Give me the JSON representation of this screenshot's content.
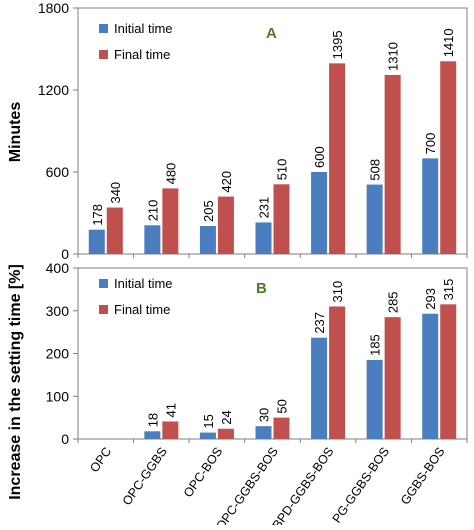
{
  "figure": {
    "y_axis_title_top": "Minutes",
    "y_axis_title_bottom": "Increase in the setting time [%]"
  },
  "colors": {
    "initial": "#4a7ebf",
    "final": "#c0504d",
    "panel_letter": "#4f7a28"
  },
  "chart_data": [
    {
      "type": "bar",
      "panel_label": "A",
      "categories": [
        "OPC",
        "OPC-GGBS",
        "OPC-BOS",
        "OPC-GGBS-BOS",
        "BPD-GGBS-BOS",
        "PG-GGBS-BOS",
        "GGBS-BOS"
      ],
      "series": [
        {
          "name": "Initial time",
          "values": [
            178,
            210,
            205,
            231,
            600,
            508,
            700
          ]
        },
        {
          "name": "Final time",
          "values": [
            340,
            480,
            420,
            510,
            1395,
            1310,
            1410
          ]
        }
      ],
      "data_labels": {
        "initial": [
          "178",
          "210",
          "205",
          "231",
          "600",
          "508",
          "700"
        ],
        "final": [
          "340",
          "480",
          "420",
          "510",
          "1395",
          "1310",
          "1410"
        ]
      },
      "ylim": [
        0,
        1800
      ],
      "yticks": [
        "0",
        "600",
        "1200",
        "1800"
      ],
      "ylabel": "Minutes",
      "legend": "top-left",
      "grid": false
    },
    {
      "type": "bar",
      "panel_label": "B",
      "categories": [
        "OPC",
        "OPC-GGBS",
        "OPC-BOS",
        "OPC-GGBS-BOS",
        "BPD-GGBS-BOS",
        "PG-GGBS-BOS",
        "GGBS-BOS"
      ],
      "series": [
        {
          "name": "Initial time",
          "values": [
            0,
            18,
            15,
            30,
            237,
            185,
            293
          ]
        },
        {
          "name": "Final time",
          "values": [
            0,
            41,
            24,
            50,
            310,
            285,
            315
          ]
        }
      ],
      "data_labels": {
        "initial": [
          "",
          "18",
          "15",
          "30",
          "237",
          "185",
          "293"
        ],
        "final": [
          "",
          "41",
          "24",
          "50",
          "310",
          "285",
          "315"
        ]
      },
      "ylim": [
        0,
        400
      ],
      "yticks": [
        "0",
        "100",
        "200",
        "300",
        "400"
      ],
      "ylabel": "Increase in the setting time [%]",
      "legend": "top-left",
      "grid": false
    }
  ]
}
